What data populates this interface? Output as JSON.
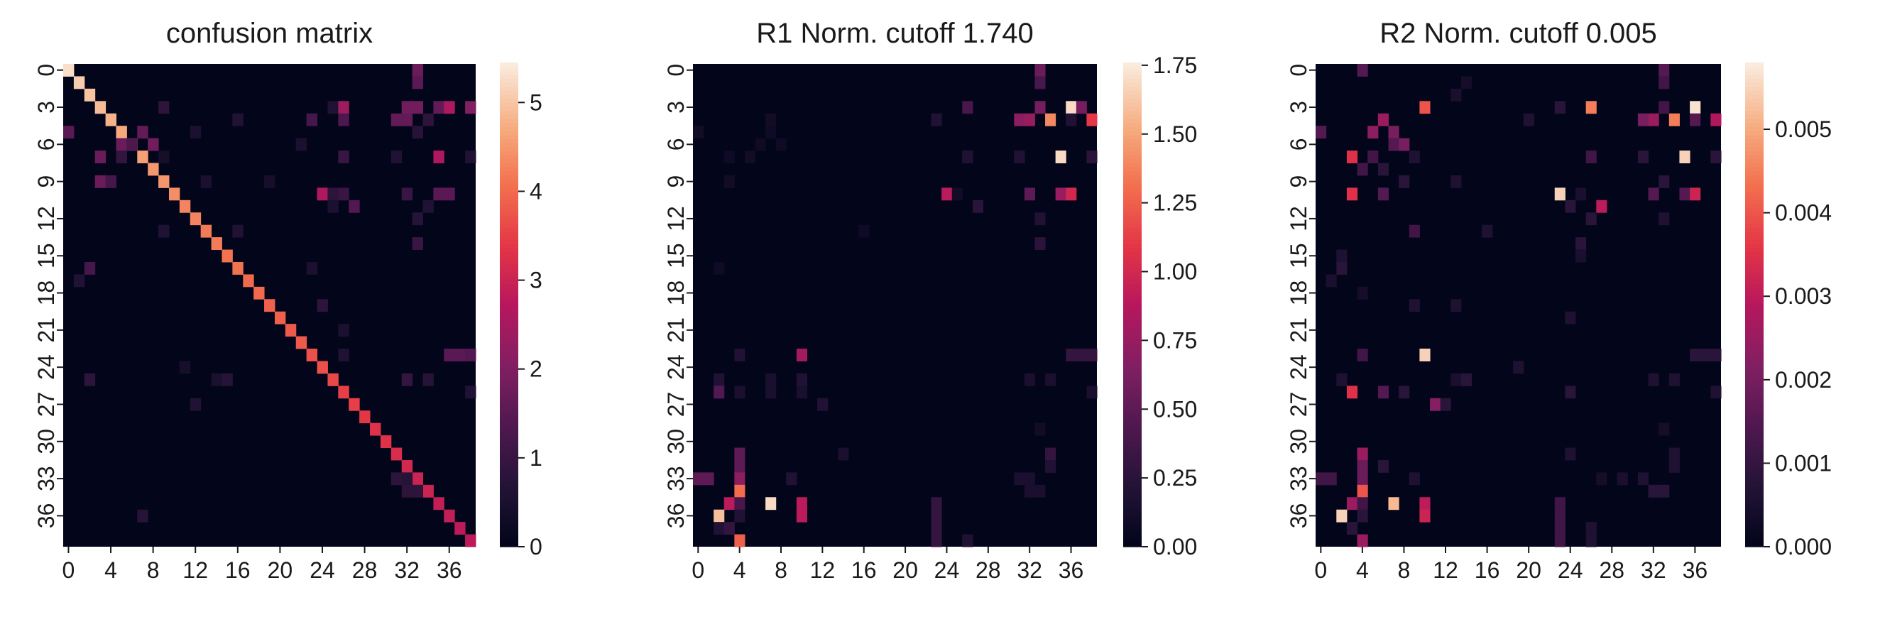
{
  "chart_data": [
    {
      "type": "heatmap",
      "title": "confusion matrix",
      "xlabel": "",
      "ylabel": "",
      "size": 39,
      "x_tick_labels": [
        "0",
        "4",
        "8",
        "12",
        "16",
        "20",
        "24",
        "28",
        "32",
        "36"
      ],
      "y_tick_labels": [
        "0",
        "3",
        "6",
        "9",
        "12",
        "15",
        "18",
        "21",
        "24",
        "27",
        "30",
        "33",
        "36"
      ],
      "colorbar_ticks": [
        "0",
        "1",
        "2",
        "3",
        "4",
        "5"
      ],
      "vmin": 0,
      "vmax": 5.45,
      "colormap": "rocket",
      "diagonal": [
        5.3,
        5.1,
        5.0,
        4.9,
        4.8,
        4.7,
        4.6,
        4.6,
        4.5,
        4.5,
        4.4,
        4.3,
        4.3,
        4.2,
        4.2,
        4.1,
        4.1,
        4.0,
        4.0,
        3.9,
        3.9,
        3.8,
        3.8,
        3.7,
        3.7,
        3.6,
        3.5,
        3.5,
        3.4,
        3.3,
        3.3,
        3.2,
        3.1,
        3.0,
        3.0,
        2.9,
        2.9,
        2.8,
        2.8
      ],
      "cells": [
        [
          0,
          33,
          1.7
        ],
        [
          1,
          33,
          1.5
        ],
        [
          3,
          9,
          0.8
        ],
        [
          3,
          25,
          0.6
        ],
        [
          3,
          26,
          2.4
        ],
        [
          3,
          32,
          1.8
        ],
        [
          3,
          33,
          1.8
        ],
        [
          3,
          35,
          1.6
        ],
        [
          3,
          36,
          2.6
        ],
        [
          3,
          38,
          2.0
        ],
        [
          4,
          16,
          0.6
        ],
        [
          4,
          23,
          1.2
        ],
        [
          4,
          26,
          1.3
        ],
        [
          4,
          31,
          1.6
        ],
        [
          4,
          32,
          1.6
        ],
        [
          4,
          34,
          0.8
        ],
        [
          5,
          0,
          1.5
        ],
        [
          5,
          7,
          1.6
        ],
        [
          5,
          12,
          0.5
        ],
        [
          5,
          33,
          0.7
        ],
        [
          6,
          5,
          1.7
        ],
        [
          6,
          6,
          1.3
        ],
        [
          6,
          8,
          1.8
        ],
        [
          6,
          22,
          0.5
        ],
        [
          7,
          3,
          1.7
        ],
        [
          7,
          5,
          0.9
        ],
        [
          7,
          9,
          0.4
        ],
        [
          7,
          26,
          1.0
        ],
        [
          7,
          31,
          0.6
        ],
        [
          7,
          35,
          2.6
        ],
        [
          7,
          38,
          0.6
        ],
        [
          9,
          3,
          1.7
        ],
        [
          9,
          4,
          1.2
        ],
        [
          9,
          13,
          0.5
        ],
        [
          9,
          19,
          0.4
        ],
        [
          10,
          24,
          2.6
        ],
        [
          10,
          25,
          0.8
        ],
        [
          10,
          26,
          1.0
        ],
        [
          10,
          32,
          1.0
        ],
        [
          10,
          35,
          1.5
        ],
        [
          10,
          36,
          1.5
        ],
        [
          11,
          25,
          0.5
        ],
        [
          11,
          27,
          1.4
        ],
        [
          11,
          34,
          0.6
        ],
        [
          12,
          33,
          0.7
        ],
        [
          13,
          9,
          0.6
        ],
        [
          13,
          16,
          0.6
        ],
        [
          14,
          33,
          1.0
        ],
        [
          16,
          2,
          1.2
        ],
        [
          16,
          23,
          0.5
        ],
        [
          17,
          1,
          0.6
        ],
        [
          19,
          24,
          0.8
        ],
        [
          21,
          26,
          0.5
        ],
        [
          23,
          26,
          0.6
        ],
        [
          23,
          36,
          1.5
        ],
        [
          23,
          37,
          1.5
        ],
        [
          23,
          38,
          1.4
        ],
        [
          24,
          11,
          0.4
        ],
        [
          25,
          2,
          0.8
        ],
        [
          25,
          14,
          0.5
        ],
        [
          25,
          15,
          0.7
        ],
        [
          25,
          32,
          0.9
        ],
        [
          25,
          34,
          0.7
        ],
        [
          26,
          38,
          0.6
        ],
        [
          27,
          12,
          0.6
        ],
        [
          33,
          31,
          0.8
        ],
        [
          33,
          32,
          0.7
        ],
        [
          34,
          32,
          0.8
        ],
        [
          34,
          33,
          0.8
        ],
        [
          36,
          7,
          0.7
        ]
      ]
    },
    {
      "type": "heatmap",
      "title": "R1 Norm. cutoff 1.740",
      "xlabel": "",
      "ylabel": "",
      "size": 39,
      "x_tick_labels": [
        "0",
        "4",
        "8",
        "12",
        "16",
        "20",
        "24",
        "28",
        "32",
        "36"
      ],
      "y_tick_labels": [
        "0",
        "3",
        "6",
        "9",
        "12",
        "15",
        "18",
        "21",
        "24",
        "27",
        "30",
        "33",
        "36"
      ],
      "colorbar_ticks": [
        "0.00",
        "0.25",
        "0.50",
        "0.75",
        "1.00",
        "1.25",
        "1.50",
        "1.75"
      ],
      "vmin": 0,
      "vmax": 1.76,
      "colormap": "rocket",
      "cells": [
        [
          0,
          33,
          0.55
        ],
        [
          1,
          33,
          0.4
        ],
        [
          3,
          26,
          0.4
        ],
        [
          3,
          33,
          0.6
        ],
        [
          3,
          36,
          1.7
        ],
        [
          3,
          37,
          0.6
        ],
        [
          4,
          7,
          0.1
        ],
        [
          4,
          23,
          0.2
        ],
        [
          4,
          31,
          0.7
        ],
        [
          4,
          32,
          0.75
        ],
        [
          4,
          34,
          1.4
        ],
        [
          4,
          36,
          0.2
        ],
        [
          4,
          38,
          1.1
        ],
        [
          5,
          0,
          0.1
        ],
        [
          5,
          7,
          0.08
        ],
        [
          6,
          6,
          0.08
        ],
        [
          6,
          8,
          0.08
        ],
        [
          7,
          3,
          0.08
        ],
        [
          7,
          5,
          0.1
        ],
        [
          7,
          26,
          0.2
        ],
        [
          7,
          31,
          0.2
        ],
        [
          7,
          35,
          1.7
        ],
        [
          7,
          38,
          0.25
        ],
        [
          9,
          3,
          0.1
        ],
        [
          10,
          24,
          0.9
        ],
        [
          10,
          32,
          0.5
        ],
        [
          10,
          35,
          0.75
        ],
        [
          10,
          36,
          1.0
        ],
        [
          10,
          25,
          0.1
        ],
        [
          11,
          27,
          0.25
        ],
        [
          12,
          33,
          0.2
        ],
        [
          13,
          16,
          0.08
        ],
        [
          14,
          33,
          0.25
        ],
        [
          16,
          2,
          0.08
        ],
        [
          23,
          4,
          0.2
        ],
        [
          23,
          10,
          0.8
        ],
        [
          23,
          36,
          0.3
        ],
        [
          23,
          37,
          0.3
        ],
        [
          23,
          38,
          0.3
        ],
        [
          25,
          2,
          0.2
        ],
        [
          25,
          7,
          0.15
        ],
        [
          25,
          10,
          0.2
        ],
        [
          25,
          32,
          0.15
        ],
        [
          25,
          34,
          0.15
        ],
        [
          26,
          2,
          0.45
        ],
        [
          26,
          4,
          0.15
        ],
        [
          26,
          7,
          0.15
        ],
        [
          26,
          10,
          0.15
        ],
        [
          26,
          38,
          0.15
        ],
        [
          27,
          12,
          0.2
        ],
        [
          29,
          33,
          0.1
        ],
        [
          31,
          4,
          0.5
        ],
        [
          31,
          14,
          0.15
        ],
        [
          31,
          34,
          0.3
        ],
        [
          32,
          4,
          0.5
        ],
        [
          32,
          34,
          0.2
        ],
        [
          33,
          0,
          0.5
        ],
        [
          33,
          1,
          0.5
        ],
        [
          33,
          4,
          0.7
        ],
        [
          33,
          9,
          0.2
        ],
        [
          33,
          31,
          0.15
        ],
        [
          33,
          32,
          0.15
        ],
        [
          34,
          4,
          1.3
        ],
        [
          34,
          32,
          0.15
        ],
        [
          34,
          33,
          0.15
        ],
        [
          35,
          3,
          0.9
        ],
        [
          35,
          4,
          0.4
        ],
        [
          35,
          7,
          1.7
        ],
        [
          35,
          10,
          0.9
        ],
        [
          35,
          23,
          0.3
        ],
        [
          36,
          2,
          1.6
        ],
        [
          36,
          4,
          0.2
        ],
        [
          36,
          10,
          0.9
        ],
        [
          36,
          23,
          0.3
        ],
        [
          37,
          2,
          0.2
        ],
        [
          37,
          3,
          0.3
        ],
        [
          37,
          23,
          0.3
        ],
        [
          38,
          4,
          1.25
        ],
        [
          38,
          23,
          0.3
        ],
        [
          38,
          26,
          0.2
        ]
      ]
    },
    {
      "type": "heatmap",
      "title": "R2 Norm. cutoff 0.005",
      "xlabel": "",
      "ylabel": "",
      "size": 39,
      "x_tick_labels": [
        "0",
        "4",
        "8",
        "12",
        "16",
        "20",
        "24",
        "28",
        "32",
        "36"
      ],
      "y_tick_labels": [
        "0",
        "3",
        "6",
        "9",
        "12",
        "15",
        "18",
        "21",
        "24",
        "27",
        "30",
        "33",
        "36"
      ],
      "colorbar_ticks": [
        "0.000",
        "0.001",
        "0.002",
        "0.003",
        "0.004",
        "0.005"
      ],
      "vmin": 0,
      "vmax": 0.0058,
      "colormap": "rocket",
      "cells": [
        [
          0,
          4,
          0.0015
        ],
        [
          0,
          33,
          0.0015
        ],
        [
          1,
          14,
          0.0004
        ],
        [
          1,
          33,
          0.0012
        ],
        [
          2,
          13,
          0.0005
        ],
        [
          3,
          10,
          0.004
        ],
        [
          3,
          23,
          0.0008
        ],
        [
          3,
          26,
          0.0045
        ],
        [
          3,
          36,
          0.0057
        ],
        [
          3,
          33,
          0.0012
        ],
        [
          4,
          6,
          0.0025
        ],
        [
          4,
          20,
          0.0006
        ],
        [
          4,
          32,
          0.0025
        ],
        [
          4,
          31,
          0.002
        ],
        [
          4,
          34,
          0.0045
        ],
        [
          4,
          36,
          0.0015
        ],
        [
          4,
          38,
          0.0028
        ],
        [
          5,
          0,
          0.0015
        ],
        [
          5,
          5,
          0.0023
        ],
        [
          5,
          7,
          0.002
        ],
        [
          6,
          7,
          0.0015
        ],
        [
          6,
          8,
          0.002
        ],
        [
          7,
          3,
          0.0035
        ],
        [
          7,
          5,
          0.0012
        ],
        [
          7,
          9,
          0.0006
        ],
        [
          7,
          26,
          0.0012
        ],
        [
          7,
          31,
          0.0008
        ],
        [
          7,
          35,
          0.0055
        ],
        [
          7,
          38,
          0.0008
        ],
        [
          8,
          4,
          0.0012
        ],
        [
          8,
          6,
          0.0008
        ],
        [
          9,
          13,
          0.0006
        ],
        [
          9,
          8,
          0.0008
        ],
        [
          9,
          33,
          0.0008
        ],
        [
          10,
          3,
          0.0035
        ],
        [
          10,
          6,
          0.0015
        ],
        [
          10,
          23,
          0.0055
        ],
        [
          10,
          32,
          0.0015
        ],
        [
          10,
          35,
          0.0015
        ],
        [
          10,
          36,
          0.0032
        ],
        [
          10,
          25,
          0.0005
        ],
        [
          11,
          27,
          0.003
        ],
        [
          11,
          24,
          0.0008
        ],
        [
          12,
          26,
          0.0008
        ],
        [
          12,
          33,
          0.0006
        ],
        [
          13,
          9,
          0.0012
        ],
        [
          13,
          16,
          0.0006
        ],
        [
          14,
          25,
          0.0008
        ],
        [
          15,
          2,
          0.0006
        ],
        [
          15,
          25,
          0.0005
        ],
        [
          16,
          2,
          0.0008
        ],
        [
          17,
          1,
          0.0005
        ],
        [
          18,
          4,
          0.0004
        ],
        [
          19,
          9,
          0.0006
        ],
        [
          19,
          13,
          0.0006
        ],
        [
          20,
          24,
          0.0006
        ],
        [
          23,
          4,
          0.0012
        ],
        [
          23,
          10,
          0.0055
        ],
        [
          23,
          36,
          0.0008
        ],
        [
          23,
          37,
          0.0008
        ],
        [
          23,
          38,
          0.0008
        ],
        [
          24,
          19,
          0.0006
        ],
        [
          25,
          2,
          0.0006
        ],
        [
          25,
          13,
          0.0005
        ],
        [
          25,
          14,
          0.0008
        ],
        [
          25,
          32,
          0.0006
        ],
        [
          25,
          34,
          0.0006
        ],
        [
          26,
          3,
          0.0035
        ],
        [
          26,
          6,
          0.0015
        ],
        [
          26,
          8,
          0.0008
        ],
        [
          26,
          24,
          0.0008
        ],
        [
          26,
          38,
          0.0006
        ],
        [
          27,
          11,
          0.0022
        ],
        [
          27,
          12,
          0.0008
        ],
        [
          29,
          33,
          0.0004
        ],
        [
          31,
          4,
          0.0025
        ],
        [
          31,
          34,
          0.0006
        ],
        [
          31,
          24,
          0.0006
        ],
        [
          32,
          4,
          0.0018
        ],
        [
          32,
          34,
          0.0006
        ],
        [
          32,
          6,
          0.0008
        ],
        [
          33,
          0,
          0.0012
        ],
        [
          33,
          1,
          0.0012
        ],
        [
          33,
          4,
          0.0018
        ],
        [
          33,
          9,
          0.0006
        ],
        [
          33,
          31,
          0.0006
        ],
        [
          33,
          27,
          0.0004
        ],
        [
          33,
          29,
          0.0005
        ],
        [
          34,
          4,
          0.004
        ],
        [
          34,
          32,
          0.0008
        ],
        [
          34,
          33,
          0.0008
        ],
        [
          35,
          3,
          0.0025
        ],
        [
          35,
          4,
          0.0012
        ],
        [
          35,
          7,
          0.0052
        ],
        [
          35,
          10,
          0.003
        ],
        [
          35,
          23,
          0.0012
        ],
        [
          36,
          2,
          0.0055
        ],
        [
          36,
          4,
          0.0008
        ],
        [
          36,
          10,
          0.0032
        ],
        [
          36,
          23,
          0.0012
        ],
        [
          37,
          3,
          0.0008
        ],
        [
          37,
          23,
          0.0012
        ],
        [
          37,
          26,
          0.0006
        ],
        [
          38,
          4,
          0.0025
        ],
        [
          38,
          23,
          0.0012
        ],
        [
          38,
          26,
          0.0006
        ]
      ]
    }
  ]
}
